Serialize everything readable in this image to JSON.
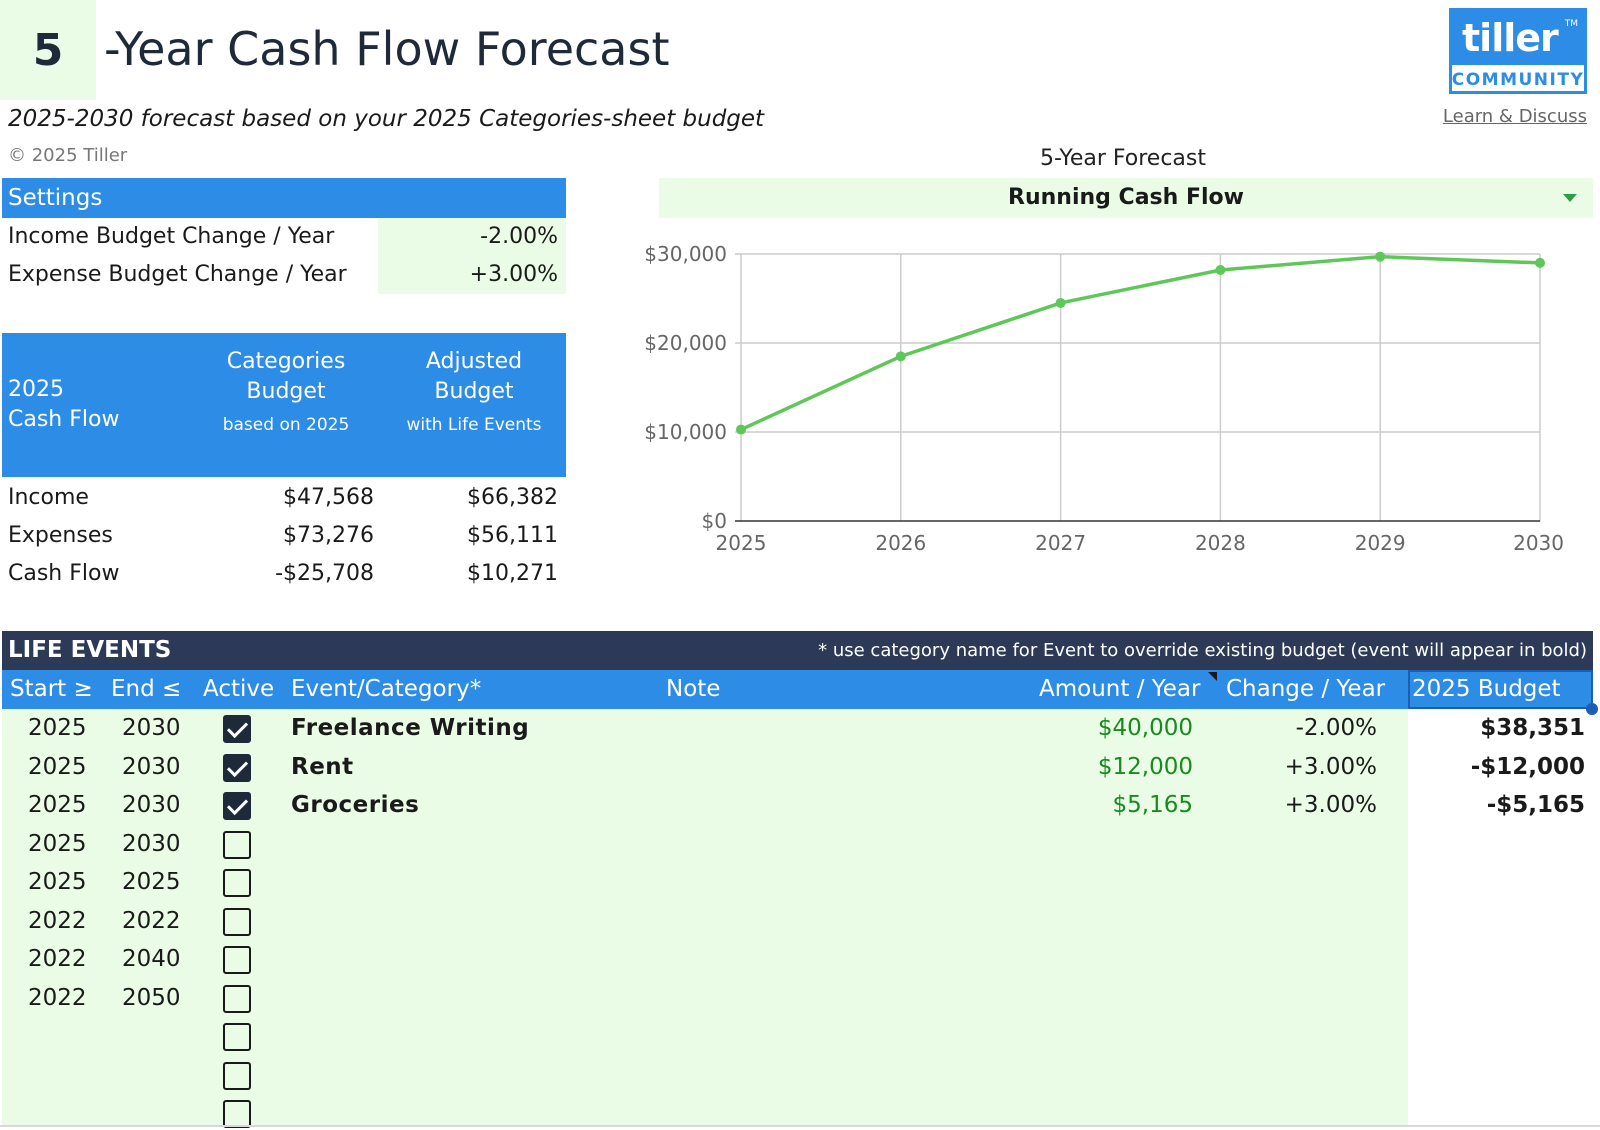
{
  "header": {
    "years": "5",
    "title": "-Year Cash Flow Forecast",
    "subtitle": "2025-2030 forecast based on your 2025 Categories-sheet budget",
    "copyright": "© 2025 Tiller"
  },
  "logo": {
    "brand": "tiller",
    "tm": "TM",
    "community": "COMMUNITY",
    "link": "Learn & Discuss"
  },
  "settings": {
    "title": "Settings",
    "rows": [
      {
        "label": "Income Budget Change / Year",
        "value": "-2.00%"
      },
      {
        "label": "Expense Budget Change / Year",
        "value": "+3.00%"
      }
    ]
  },
  "cashflow": {
    "title": "2025\nCash Flow",
    "col1": "Categories\nBudget",
    "col1_sub": "based on 2025",
    "col2": "Adjusted\nBudget",
    "col2_sub": "with Life Events",
    "rows": [
      {
        "label": "Income",
        "categories": "$47,568",
        "adjusted": "$66,382"
      },
      {
        "label": "Expenses",
        "categories": "$73,276",
        "adjusted": "$56,111"
      },
      {
        "label": "Cash Flow",
        "categories": "-$25,708",
        "adjusted": "$10,271"
      }
    ]
  },
  "chart_panel": {
    "title": "5-Year Forecast",
    "selected": "Running Cash Flow"
  },
  "chart_data": {
    "type": "line",
    "x": [
      2025,
      2026,
      2027,
      2028,
      2029,
      2030
    ],
    "xticks": [
      "2025",
      "2026",
      "2027",
      "2028",
      "2029",
      "2030"
    ],
    "yticks": [
      "$0",
      "$10,000",
      "$20,000",
      "$30,000"
    ],
    "ylim": [
      0,
      30000
    ],
    "series": [
      {
        "values": [
          10271,
          18500,
          24500,
          28200,
          29700,
          29000
        ],
        "color": "#5fc75a"
      }
    ],
    "grid": true
  },
  "life_events": {
    "title": "LIFE EVENTS",
    "note": "* use category name for Event to override existing budget (event will appear in bold)",
    "columns": {
      "start": "Start ≥",
      "end": "End ≤",
      "active": "Active",
      "event": "Event/Category*",
      "note": "Note",
      "amount": "Amount / Year",
      "change": "Change / Year",
      "budget": "2025 Budget"
    },
    "rows": [
      {
        "start": "2025",
        "end": "2030",
        "active": true,
        "event": "Freelance Writing",
        "amount": "$40,000",
        "change": "-2.00%",
        "budget": "$38,351"
      },
      {
        "start": "2025",
        "end": "2030",
        "active": true,
        "event": "Rent",
        "amount": "$12,000",
        "change": "+3.00%",
        "budget": "-$12,000"
      },
      {
        "start": "2025",
        "end": "2030",
        "active": true,
        "event": "Groceries",
        "amount": "$5,165",
        "change": "+3.00%",
        "budget": "-$5,165"
      },
      {
        "start": "2025",
        "end": "2030",
        "active": false,
        "event": "",
        "amount": "",
        "change": "",
        "budget": ""
      },
      {
        "start": "2025",
        "end": "2025",
        "active": false,
        "event": "",
        "amount": "",
        "change": "",
        "budget": ""
      },
      {
        "start": "2022",
        "end": "2022",
        "active": false,
        "event": "",
        "amount": "",
        "change": "",
        "budget": ""
      },
      {
        "start": "2022",
        "end": "2040",
        "active": false,
        "event": "",
        "amount": "",
        "change": "",
        "budget": ""
      },
      {
        "start": "2022",
        "end": "2050",
        "active": false,
        "event": "",
        "amount": "",
        "change": "",
        "budget": ""
      },
      {
        "start": "",
        "end": "",
        "active": false,
        "event": "",
        "amount": "",
        "change": "",
        "budget": ""
      },
      {
        "start": "",
        "end": "",
        "active": false,
        "event": "",
        "amount": "",
        "change": "",
        "budget": ""
      },
      {
        "start": "",
        "end": "",
        "active": false,
        "event": "",
        "amount": "",
        "change": "",
        "budget": ""
      }
    ]
  }
}
